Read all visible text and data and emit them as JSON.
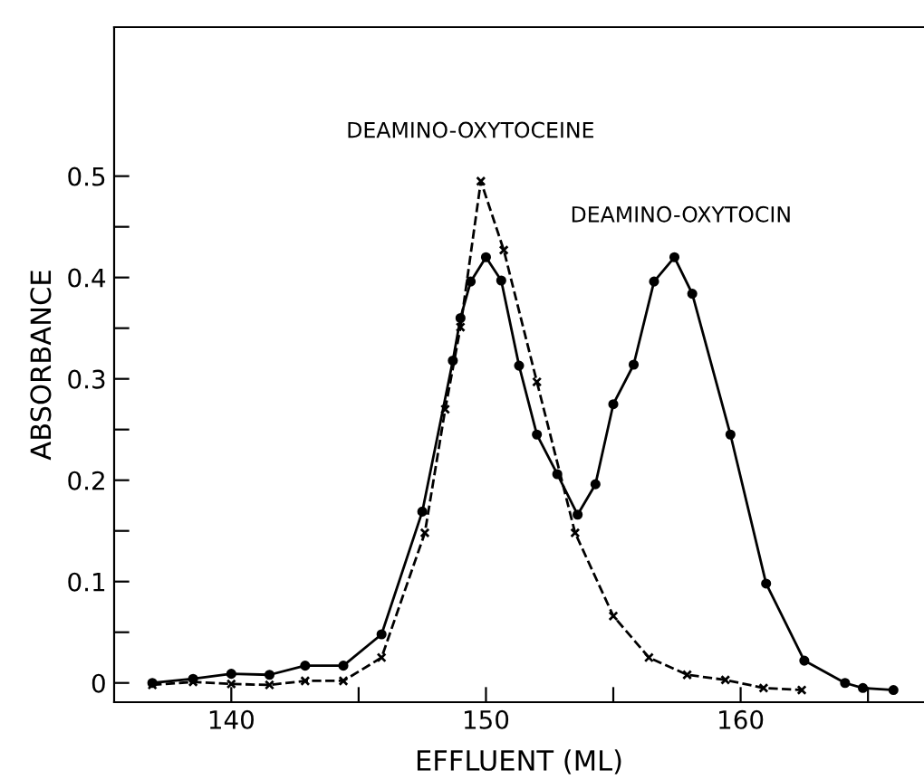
{
  "chart_data": {
    "type": "line",
    "xlabel": "EFFLUENT (ML)",
    "ylabel": "ABSORBANCE",
    "xlim": [
      135.4,
      167.2
    ],
    "ylim": [
      -0.019,
      0.647
    ],
    "xticks": [
      140,
      {
        "value": 145,
        "label": null
      },
      150,
      {
        "value": 155,
        "label": null
      },
      160,
      {
        "value": 165,
        "label": null
      }
    ],
    "yticks": [
      {
        "value": 0,
        "label": "0"
      },
      {
        "value": 0.05,
        "label": null
      },
      0.1,
      {
        "value": 0.15,
        "label": null
      },
      0.2,
      {
        "value": 0.25,
        "label": null
      },
      0.3,
      {
        "value": 0.35,
        "label": null
      },
      0.4,
      {
        "value": 0.45,
        "label": null
      },
      0.5
    ],
    "grid": false,
    "legend": false,
    "series": [
      {
        "color": "#000000",
        "marker": "circle",
        "line_style": "solid",
        "x": [
          136.9,
          138.5,
          140.0,
          141.5,
          142.9,
          144.4,
          145.9,
          147.5,
          148.7,
          149.0,
          149.4,
          150.0,
          150.6,
          151.3,
          152.0,
          152.8,
          153.6,
          154.3,
          155.0,
          155.8,
          156.6,
          157.4,
          158.1,
          159.6,
          161.0,
          162.5,
          164.1,
          164.8,
          166.0
        ],
        "values": [
          0.0,
          0.004,
          0.009,
          0.008,
          0.017,
          0.017,
          0.048,
          0.169,
          0.318,
          0.36,
          0.396,
          0.42,
          0.397,
          0.313,
          0.245,
          0.206,
          0.166,
          0.196,
          0.275,
          0.314,
          0.396,
          0.42,
          0.384,
          0.245,
          0.098,
          0.022,
          0.0,
          -0.005,
          -0.007
        ]
      },
      {
        "color": "#000000",
        "marker": "cross",
        "line_style": "dashed",
        "x": [
          136.9,
          138.5,
          140.0,
          141.5,
          142.9,
          144.4,
          145.9,
          147.6,
          148.4,
          149.0,
          149.8,
          150.7,
          152.0,
          153.5,
          155.0,
          156.4,
          157.9,
          159.4,
          160.9,
          162.4
        ],
        "values": [
          -0.002,
          0.001,
          -0.001,
          -0.002,
          0.002,
          0.002,
          0.025,
          0.148,
          0.27,
          0.351,
          0.495,
          0.427,
          0.297,
          0.148,
          0.066,
          0.025,
          0.008,
          0.003,
          -0.005,
          -0.007
        ]
      }
    ],
    "annotations": [
      "DEAMINO-OXYTOCEINE",
      "DEAMINO-OXYTOCIN"
    ]
  }
}
